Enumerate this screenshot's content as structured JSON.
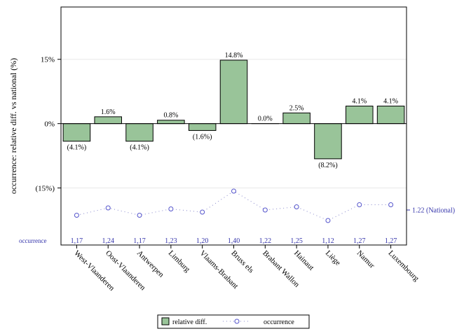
{
  "chart_data": {
    "type": "bar",
    "categories": [
      "West-Vlaanderen",
      "Oost-Vlaanderen",
      "Antwerpen",
      "Limburg",
      "Vlaams-Brabant",
      "Bruss els",
      "Brabant Wallon",
      "Hainaut",
      "Liège",
      "Namur",
      "Luxembourg"
    ],
    "series": [
      {
        "name": "relative diff.",
        "type": "bar",
        "values": [
          -4.1,
          1.6,
          -4.1,
          0.8,
          -1.6,
          14.8,
          0.0,
          2.5,
          -8.2,
          4.1,
          4.1
        ],
        "labels": [
          "(4.1%)",
          "1.6%",
          "(4.1%)",
          "0.8%",
          "(1.6%)",
          "14.8%",
          "0.0%",
          "2.5%",
          "(8.2%)",
          "4.1%",
          "4.1%"
        ],
        "color": "#99c499"
      },
      {
        "name": "occurrence",
        "type": "line",
        "values": [
          1.17,
          1.24,
          1.17,
          1.23,
          1.2,
          1.4,
          1.22,
          1.25,
          1.12,
          1.27,
          1.27
        ],
        "labels": [
          "1,17",
          "1,24",
          "1,17",
          "1,23",
          "1,20",
          "1,40",
          "1,22",
          "1,25",
          "1,12",
          "1,27",
          "1,27"
        ],
        "color": "#3333aa"
      }
    ],
    "ylabel": "occurrence: relative diff. vs national (%)",
    "yticks": [
      15,
      0,
      -15
    ],
    "ytick_labels": [
      "15%",
      "0%",
      "(15%)"
    ],
    "ylim": [
      -28.3,
      27.2
    ],
    "grid": true,
    "row_label": "occurrence",
    "national_label": "1.22 (National)",
    "legend_position": "bottom"
  }
}
